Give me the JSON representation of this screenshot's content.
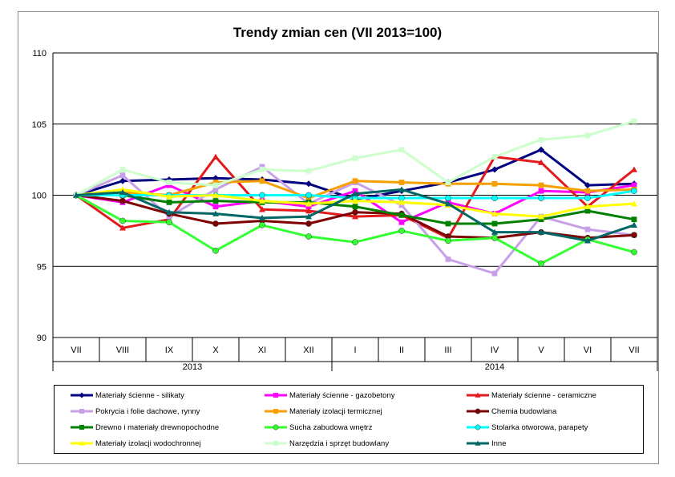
{
  "chart_data": {
    "type": "line",
    "title": "Trendy zmian cen (VII 2013=100)",
    "x_categories": [
      "VII",
      "VIII",
      "IX",
      "X",
      "XI",
      "XII",
      "I",
      "II",
      "III",
      "IV",
      "V",
      "VI",
      "VII"
    ],
    "year_groups": [
      {
        "label": "2013",
        "span": 6
      },
      {
        "label": "2014",
        "span": 7
      }
    ],
    "ylim": [
      90,
      110
    ],
    "yticks": [
      90,
      95,
      100,
      105,
      110
    ],
    "grid": true,
    "legend_position": "bottom",
    "series": [
      {
        "name": "Materiały ścienne - silikaty",
        "color": "#000080",
        "marker": "diamond",
        "values": [
          100,
          101.0,
          101.1,
          101.2,
          101.1,
          100.8,
          99.7,
          100.3,
          100.9,
          101.8,
          103.2,
          100.7,
          100.8
        ]
      },
      {
        "name": "Materiały ścienne - gazobetony",
        "color": "#FF00FF",
        "marker": "square",
        "values": [
          100,
          99.5,
          100.7,
          99.2,
          99.6,
          99.2,
          100.3,
          98.1,
          99.5,
          98.7,
          100.3,
          100.2,
          100.7
        ]
      },
      {
        "name": "Materiały ścienne - ceramiczne",
        "color": "#E31A1C",
        "marker": "triangle",
        "values": [
          100,
          97.7,
          98.3,
          102.7,
          99.0,
          98.9,
          98.5,
          98.6,
          97.0,
          102.7,
          102.3,
          99.2,
          101.8
        ]
      },
      {
        "name": "Pokrycia i folie dachowe, rynny",
        "color": "#C8A0E8",
        "marker": "square",
        "values": [
          100,
          101.4,
          98.5,
          100.4,
          102.0,
          99.4,
          100.9,
          99.3,
          95.5,
          94.5,
          98.5,
          97.6,
          97.2
        ]
      },
      {
        "name": "Materiały izolacji termicznej",
        "color": "#F5A000",
        "marker": "square",
        "values": [
          100,
          100.2,
          100.0,
          100.9,
          101.0,
          99.8,
          101.0,
          100.9,
          100.8,
          100.8,
          100.7,
          100.3,
          100.4
        ]
      },
      {
        "name": "Chemia budowlana",
        "color": "#7F0000",
        "marker": "circle",
        "values": [
          100,
          99.6,
          98.7,
          98.0,
          98.2,
          98.0,
          98.8,
          98.7,
          97.1,
          97.0,
          97.4,
          97.0,
          97.2
        ]
      },
      {
        "name": "Drewno i materiały drewnopochodne",
        "color": "#008000",
        "marker": "square",
        "values": [
          100,
          100.0,
          99.5,
          99.6,
          99.5,
          99.5,
          99.2,
          98.6,
          98.0,
          98.0,
          98.3,
          98.9,
          98.3
        ]
      },
      {
        "name": "Sucha zabudowa wnętrz",
        "color": "#33FF33",
        "marker": "circle",
        "values": [
          100,
          98.2,
          98.1,
          96.1,
          97.9,
          97.1,
          96.7,
          97.5,
          96.8,
          97.0,
          95.2,
          96.9,
          96.0
        ]
      },
      {
        "name": "Stolarka otworowa, parapety",
        "color": "#00FFFF",
        "marker": "circle",
        "values": [
          100,
          100.0,
          100.0,
          100.0,
          100.0,
          100.0,
          99.8,
          99.8,
          99.8,
          99.8,
          99.8,
          99.8,
          100.3
        ]
      },
      {
        "name": "Materiały izolacji wodochronnej",
        "color": "#FFFF00",
        "marker": "triangle",
        "values": [
          100,
          100.4,
          99.9,
          100.0,
          99.6,
          99.4,
          99.6,
          99.5,
          99.3,
          98.7,
          98.5,
          99.2,
          99.4
        ]
      },
      {
        "name": "Narzędzia i sprzęt budowlany",
        "color": "#CCFFCC",
        "marker": "square",
        "values": [
          100,
          101.8,
          100.9,
          100.7,
          101.8,
          101.7,
          102.6,
          103.2,
          100.9,
          102.7,
          103.9,
          104.2,
          105.2
        ]
      },
      {
        "name": "Inne",
        "color": "#006666",
        "marker": "triangle",
        "values": [
          100,
          100.2,
          98.8,
          98.7,
          98.4,
          98.5,
          100.1,
          100.4,
          99.4,
          97.4,
          97.4,
          96.8,
          97.9
        ]
      }
    ]
  }
}
